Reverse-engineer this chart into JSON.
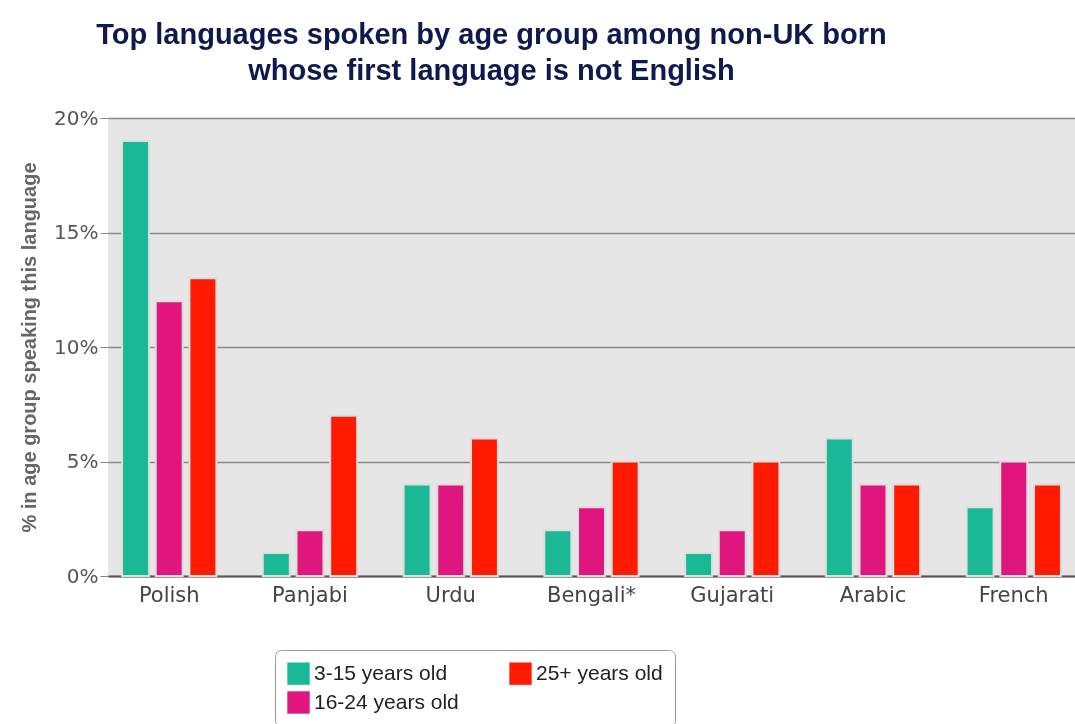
{
  "chart_data": {
    "type": "bar",
    "title": "Top languages spoken by age group among non-UK born\nwhose first language is not English",
    "ylabel": "% in age group speaking this language",
    "categories": [
      "Polish",
      "Panjabi",
      "Urdu",
      "Bengali*",
      "Gujarati",
      "Arabic",
      "French"
    ],
    "series": [
      {
        "name": "3-15 years old",
        "color": "#1bb896",
        "values": [
          19,
          1,
          4,
          2,
          1,
          6,
          3
        ]
      },
      {
        "name": "16-24 years old",
        "color": "#e0167e",
        "values": [
          12,
          2,
          4,
          3,
          2,
          4,
          5
        ]
      },
      {
        "name": "25+ years old",
        "color": "#ff1a00",
        "values": [
          13,
          7,
          6,
          5,
          5,
          4,
          4
        ]
      }
    ],
    "ylim": [
      0,
      20
    ],
    "yticks": [
      {
        "value": 0,
        "label": "0%"
      },
      {
        "value": 5,
        "label": "5%"
      },
      {
        "value": 10,
        "label": "10%"
      },
      {
        "value": 15,
        "label": "15%"
      },
      {
        "value": 20,
        "label": "20%"
      }
    ],
    "grid": "y",
    "legend": "bottom"
  }
}
